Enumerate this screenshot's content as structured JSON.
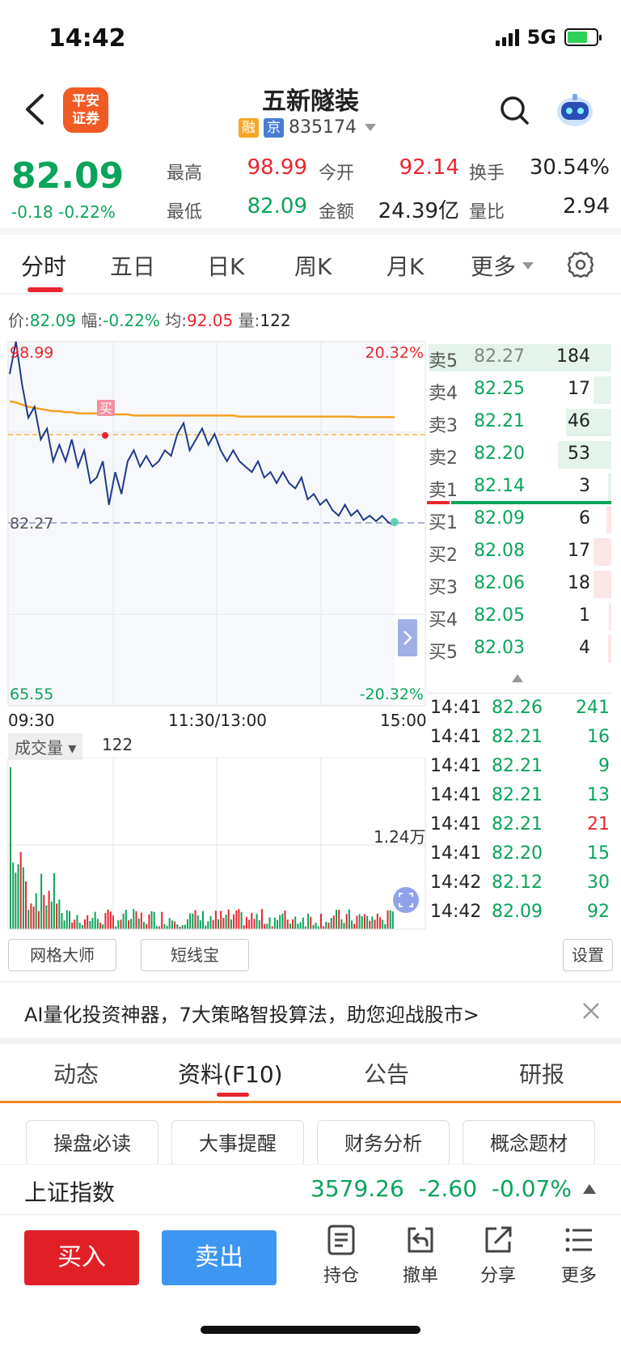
{
  "status": {
    "time": "14:42",
    "network": "5G"
  },
  "header": {
    "logo_line1": "平安",
    "logo_line2": "证券",
    "stock_name": "五新隧装",
    "tag1": "融",
    "tag2": "京",
    "code": "835174"
  },
  "quote": {
    "price": "82.09",
    "change": "-0.18",
    "change_pct": "-0.22%",
    "high_label": "最高",
    "high": "98.99",
    "low_label": "最低",
    "low": "82.09",
    "open_label": "今开",
    "open": "92.14",
    "amount_label": "金额",
    "amount": "24.39亿",
    "turnover_label": "换手",
    "turnover": "30.54%",
    "ratio_label": "量比",
    "ratio": "2.94"
  },
  "tabs": [
    "分时",
    "五日",
    "日K",
    "周K",
    "月K",
    "更多"
  ],
  "info": {
    "price_label": "价:",
    "price": "82.09",
    "amp_label": "幅:",
    "amp": "-0.22%",
    "avg_label": "均:",
    "avg": "92.05",
    "vol_label": "量:",
    "vol": "122"
  },
  "chart_data": {
    "type": "line",
    "y_top": "98.99",
    "y_mid": "82.27",
    "y_bottom": "65.55",
    "pct_top": "20.32%",
    "pct_bottom": "-20.32%",
    "x_start": "09:30",
    "x_mid": "11:30/13:00",
    "x_end": "15:00",
    "marker_label": "买",
    "ylim": [
      65.55,
      98.99
    ],
    "price_series": [
      96,
      98.99,
      95,
      92,
      93,
      90,
      91,
      88,
      89.5,
      88,
      90,
      87.5,
      89,
      86,
      86.5,
      88,
      84,
      87,
      85,
      88,
      89,
      87.5,
      88.5,
      87.5,
      88,
      89,
      88.5,
      90.5,
      91.5,
      89,
      90,
      91,
      89.5,
      90.5,
      89,
      88,
      89,
      88,
      87.5,
      87,
      88,
      86.5,
      87,
      86,
      87,
      86,
      85.5,
      86.5,
      84.5,
      85,
      84,
      84.5,
      83.5,
      83,
      84,
      83,
      83.5,
      82.6,
      83,
      82.5,
      83,
      82.4,
      82.09
    ],
    "avg_series": [
      93.5,
      93.4,
      93.2,
      93,
      92.9,
      92.8,
      92.7,
      92.6,
      92.6,
      92.5,
      92.5,
      92.4,
      92.4,
      92.4,
      92.4,
      92.3,
      92.3,
      92.3,
      92.3,
      92.3,
      92.2,
      92.2,
      92.2,
      92.2,
      92.2,
      92.2,
      92.2,
      92.2,
      92.2,
      92.2,
      92.2,
      92.2,
      92.2,
      92.2,
      92.2,
      92.2,
      92.2,
      92.1,
      92.1,
      92.1,
      92.1,
      92.1,
      92.1,
      92.1,
      92.1,
      92.1,
      92.1,
      92.1,
      92.1,
      92.1,
      92.1,
      92.1,
      92.1,
      92.1,
      92.1,
      92.1,
      92.05,
      92.05,
      92.05,
      92.05,
      92.05,
      92.05,
      92.05
    ],
    "volume_label": "成交量",
    "volume_value": "122",
    "volume_scale": "1.24万"
  },
  "order_book": {
    "asks": [
      {
        "label": "卖5",
        "price": "82.27",
        "vol": "184"
      },
      {
        "label": "卖4",
        "price": "82.25",
        "vol": "17"
      },
      {
        "label": "卖3",
        "price": "82.21",
        "vol": "46"
      },
      {
        "label": "卖2",
        "price": "82.20",
        "vol": "53"
      },
      {
        "label": "卖1",
        "price": "82.14",
        "vol": "3"
      }
    ],
    "bids": [
      {
        "label": "买1",
        "price": "82.09",
        "vol": "6"
      },
      {
        "label": "买2",
        "price": "82.08",
        "vol": "17"
      },
      {
        "label": "买3",
        "price": "82.06",
        "vol": "18"
      },
      {
        "label": "买4",
        "price": "82.05",
        "vol": "1"
      },
      {
        "label": "买5",
        "price": "82.03",
        "vol": "4"
      }
    ]
  },
  "ticks": [
    {
      "time": "14:41",
      "price": "82.26",
      "vol": "241",
      "dir": "green"
    },
    {
      "time": "14:41",
      "price": "82.21",
      "vol": "16",
      "dir": "green"
    },
    {
      "time": "14:41",
      "price": "82.21",
      "vol": "9",
      "dir": "green"
    },
    {
      "time": "14:41",
      "price": "82.21",
      "vol": "13",
      "dir": "green"
    },
    {
      "time": "14:41",
      "price": "82.21",
      "vol": "21",
      "dir": "red"
    },
    {
      "time": "14:41",
      "price": "82.20",
      "vol": "15",
      "dir": "green"
    },
    {
      "time": "14:42",
      "price": "82.12",
      "vol": "30",
      "dir": "green"
    },
    {
      "time": "14:42",
      "price": "82.09",
      "vol": "92",
      "dir": "green"
    }
  ],
  "tools": {
    "grid": "网格大师",
    "short": "短线宝",
    "settings": "设置"
  },
  "ad": {
    "text": "AI量化投资神器，7大策略智投算法，助您迎战股市>"
  },
  "bottom_tabs": [
    "动态",
    "资料(F10)",
    "公告",
    "研报"
  ],
  "f10_buttons": [
    "操盘必读",
    "大事提醒",
    "财务分析",
    "概念题材"
  ],
  "index": {
    "name": "上证指数",
    "value": "3579.26",
    "change": "-2.60",
    "pct": "-0.07%"
  },
  "actions": {
    "buy": "买入",
    "sell": "卖出",
    "hold": "持仓",
    "cancel": "撤单",
    "share": "分享",
    "more": "更多"
  },
  "colors": {
    "up": "#e8262f",
    "down": "#0aa45a",
    "avg_line": "#f5a020",
    "price_line": "#1f3a8a"
  }
}
